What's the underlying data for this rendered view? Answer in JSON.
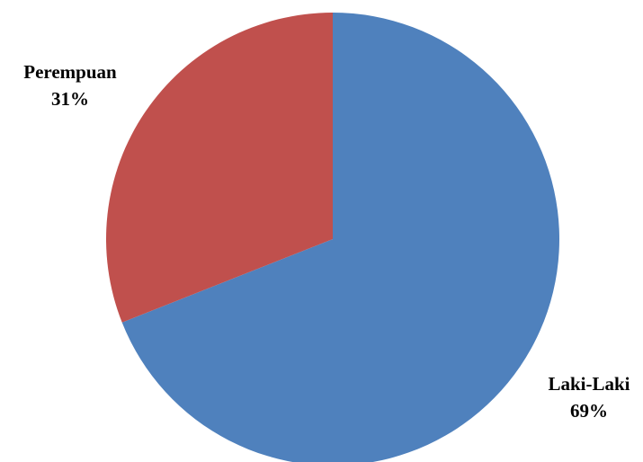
{
  "chart_data": {
    "type": "pie",
    "title": "",
    "start_angle_deg": 90,
    "direction": "clockwise",
    "slices": [
      {
        "label": "Laki-Laki",
        "value": 69,
        "value_label": "69%",
        "color": "#4F81BD"
      },
      {
        "label": "Perempuan",
        "value": 31,
        "value_label": "31%",
        "color": "#C0504D"
      }
    ]
  }
}
